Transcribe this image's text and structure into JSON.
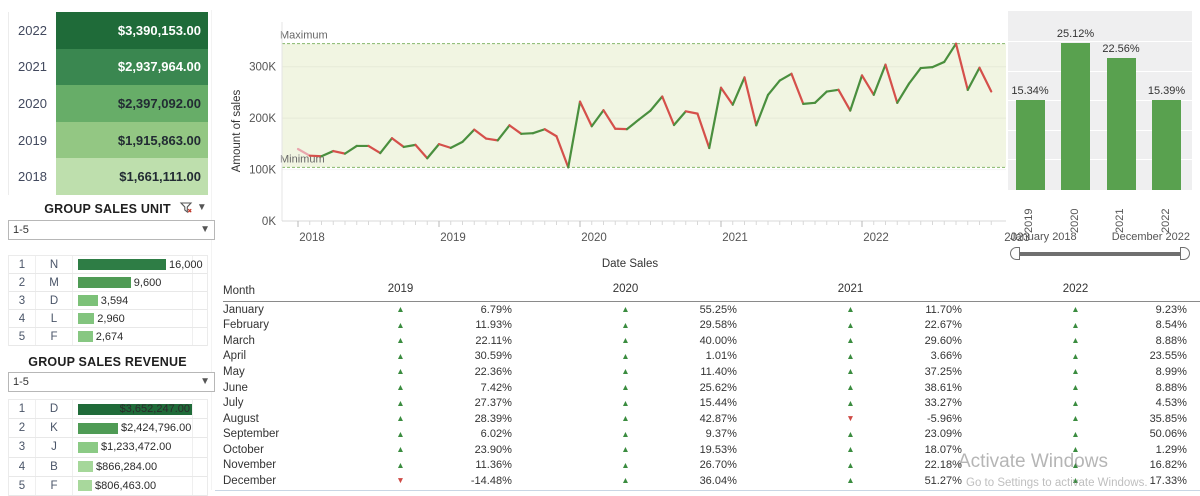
{
  "yearly_sales": {
    "rows": [
      {
        "year": "2022",
        "value": "$3,390,153.00"
      },
      {
        "year": "2021",
        "value": "$2,937,964.00"
      },
      {
        "year": "2020",
        "value": "$2,397,092.00"
      },
      {
        "year": "2019",
        "value": "$1,915,863.00"
      },
      {
        "year": "2018",
        "value": "$1,661,111.00"
      }
    ]
  },
  "group_sales_unit": {
    "title": "GROUP SALES UNIT",
    "dropdown_value": "1-5",
    "rows": [
      {
        "rank": "1",
        "code": "N",
        "value": "16,000",
        "amount": 16000
      },
      {
        "rank": "2",
        "code": "M",
        "value": "9,600",
        "amount": 9600
      },
      {
        "rank": "3",
        "code": "D",
        "value": "3,594",
        "amount": 3594
      },
      {
        "rank": "4",
        "code": "L",
        "value": "2,960",
        "amount": 2960
      },
      {
        "rank": "5",
        "code": "F",
        "value": "2,674",
        "amount": 2674
      }
    ]
  },
  "group_sales_revenue": {
    "title": "GROUP SALES REVENUE",
    "dropdown_value": "1-5",
    "rows": [
      {
        "rank": "1",
        "code": "D",
        "value": "$3,652,247.00",
        "amount": 3652247
      },
      {
        "rank": "2",
        "code": "K",
        "value": "$2,424,796.00",
        "amount": 2424796
      },
      {
        "rank": "3",
        "code": "J",
        "value": "$1,233,472.00",
        "amount": 1233472
      },
      {
        "rank": "4",
        "code": "B",
        "value": "$866,284.00",
        "amount": 866284
      },
      {
        "rank": "5",
        "code": "F",
        "value": "$806,463.00",
        "amount": 806463
      }
    ]
  },
  "slider": {
    "start_label": "January 2018",
    "end_label": "December 2022"
  },
  "watermark": {
    "line1": "Activate Windows",
    "line2": "Go to Settings to activate Windows."
  },
  "growth_table": {
    "month_header": "Month",
    "year_headers": [
      "2019",
      "2020",
      "2021",
      "2022"
    ],
    "months": [
      "January",
      "February",
      "March",
      "April",
      "May",
      "June",
      "July",
      "August",
      "September",
      "October",
      "November",
      "December"
    ],
    "values": {
      "2019": [
        6.79,
        11.93,
        22.11,
        30.59,
        22.36,
        7.42,
        27.37,
        28.39,
        6.02,
        23.9,
        11.36,
        -14.48
      ],
      "2020": [
        55.25,
        29.58,
        40.0,
        1.01,
        11.4,
        25.62,
        15.44,
        42.87,
        9.37,
        19.53,
        26.7,
        36.04
      ],
      "2021": [
        11.7,
        22.67,
        29.6,
        3.66,
        37.25,
        38.61,
        33.27,
        -5.96,
        23.09,
        18.07,
        22.18,
        51.27
      ],
      "2022": [
        9.23,
        8.54,
        8.88,
        23.55,
        8.99,
        8.88,
        4.53,
        35.85,
        50.06,
        1.29,
        16.82,
        17.33
      ]
    }
  },
  "chart_data": [
    {
      "type": "line",
      "title": "",
      "xlabel": "Date Sales",
      "ylabel": "Amount of sales",
      "ylim": [
        0,
        350
      ],
      "y_units": "K",
      "ytick_labels": [
        "0K",
        "100K",
        "200K",
        "300K"
      ],
      "ytick_values": [
        0,
        100,
        200,
        300
      ],
      "xticks": [
        "2018",
        "2019",
        "2020",
        "2021",
        "2022",
        "2023"
      ],
      "max_reference": {
        "label": "Maximum",
        "value": 344.8
      },
      "min_reference": {
        "label": "Minimum",
        "value": 104.3
      },
      "x": [
        "2018-01",
        "2018-02",
        "2018-03",
        "2018-04",
        "2018-05",
        "2018-06",
        "2018-07",
        "2018-08",
        "2018-09",
        "2018-10",
        "2018-11",
        "2018-12",
        "2019-01",
        "2019-02",
        "2019-03",
        "2019-04",
        "2019-05",
        "2019-06",
        "2019-07",
        "2019-08",
        "2019-09",
        "2019-10",
        "2019-11",
        "2019-12",
        "2020-01",
        "2020-02",
        "2020-03",
        "2020-04",
        "2020-05",
        "2020-06",
        "2020-07",
        "2020-08",
        "2020-09",
        "2020-10",
        "2020-11",
        "2020-12",
        "2021-01",
        "2021-02",
        "2021-03",
        "2021-04",
        "2021-05",
        "2021-06",
        "2021-07",
        "2021-08",
        "2021-09",
        "2021-10",
        "2021-11",
        "2021-12",
        "2022-01",
        "2022-02",
        "2022-03",
        "2022-04",
        "2022-05",
        "2022-06",
        "2022-07",
        "2022-08",
        "2022-09",
        "2022-10",
        "2022-11",
        "2022-12"
      ],
      "values": [
        140,
        127,
        126,
        136,
        131,
        146,
        146,
        132,
        161,
        144,
        148,
        122,
        149.5,
        142.2,
        153.9,
        177.6,
        160.3,
        156.8,
        186,
        169.5,
        170.7,
        178.4,
        164.8,
        104.3,
        232.1,
        184.3,
        215.4,
        179.4,
        178.6,
        197,
        214.7,
        242.1,
        186.7,
        213.2,
        208.8,
        141.9,
        259.2,
        226.1,
        279.2,
        186,
        245.1,
        273.1,
        286.2,
        227.7,
        229.8,
        251.7,
        255.1,
        214.7,
        283.1,
        245.4,
        304,
        229.8,
        267.1,
        297.4,
        299.2,
        309.3,
        344.8,
        254.9,
        298,
        251.9
      ]
    },
    {
      "type": "bar",
      "categories": [
        "2019",
        "2020",
        "2021",
        "2022"
      ],
      "values": [
        15.34,
        25.12,
        22.56,
        15.39
      ],
      "labels": [
        "15.34%",
        "25.12%",
        "22.56%",
        "15.39%"
      ],
      "ylim": [
        0,
        25.12
      ],
      "legend": "none"
    }
  ],
  "colors": {
    "year_row_colors": [
      "#1f6b39",
      "#3a8750",
      "#67ad68",
      "#93c783",
      "#bedfad"
    ],
    "year_row_text": [
      "#ffffff",
      "#ffffff",
      "#222b33",
      "#222b33",
      "#222b33"
    ],
    "unit_bar_colors": [
      "#2e7d45",
      "#4f9b55",
      "#7cc178",
      "#82c47e",
      "#87c782"
    ],
    "revenue_bar_colors": [
      "#1f6b39",
      "#4f9b55",
      "#8bca85",
      "#a5d79a",
      "#a8d89c"
    ],
    "bar_green": "#59a14f",
    "line_up": "#4a8f3e",
    "line_down": "#d5504b",
    "line_first": "#e9a6ad",
    "band_fill": "#f1f5e2",
    "ref_line": "#86b86b",
    "triangle_up": "#3a8c3f",
    "triangle_down": "#cf4a45"
  }
}
